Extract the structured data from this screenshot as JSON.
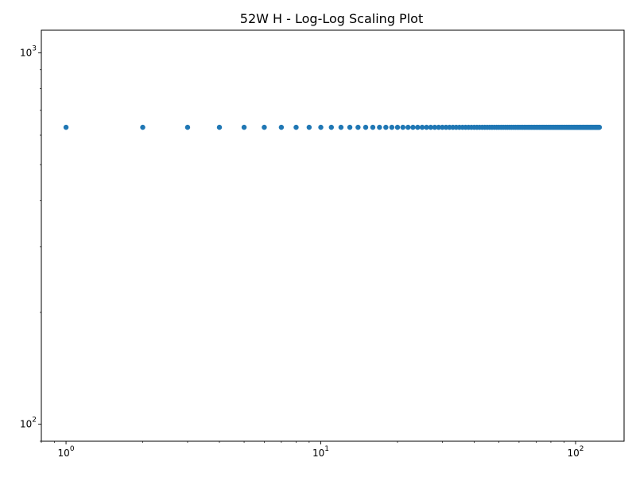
{
  "chart_data": {
    "type": "scatter",
    "title": "52W H  - Log-Log Scaling Plot",
    "xlabel": "",
    "ylabel": "",
    "xscale": "log",
    "yscale": "log",
    "xlim": [
      0.8,
      155
    ],
    "ylim": [
      90,
      1150
    ],
    "x_ticks": [
      {
        "value": 1,
        "base": "10",
        "exp": "0"
      },
      {
        "value": 10,
        "base": "10",
        "exp": "1"
      },
      {
        "value": 100,
        "base": "10",
        "exp": "2"
      }
    ],
    "y_ticks": [
      {
        "value": 100,
        "base": "10",
        "exp": "2"
      },
      {
        "value": 1000,
        "base": "10",
        "exp": "3"
      }
    ],
    "marker_color": "#1f77b4",
    "grid": false,
    "series": [
      {
        "x": [
          1,
          2,
          3,
          4,
          5,
          6,
          7,
          8,
          9,
          10,
          11,
          12,
          13,
          14,
          15,
          16,
          17,
          18,
          19,
          20,
          21,
          22,
          23,
          24,
          25,
          26,
          27,
          28,
          29,
          30,
          31,
          32,
          33,
          34,
          35,
          36,
          37,
          38,
          39,
          40,
          41,
          42,
          43,
          44,
          45,
          46,
          47,
          48,
          49,
          50,
          51,
          52,
          53,
          54,
          55,
          56,
          57,
          58,
          59,
          60,
          61,
          62,
          63,
          64,
          65,
          66,
          67,
          68,
          69,
          70,
          71,
          72,
          73,
          74,
          75,
          76,
          77,
          78,
          79,
          80,
          81,
          82,
          83,
          84,
          85,
          86,
          87,
          88,
          89,
          90,
          91,
          92,
          93,
          94,
          95,
          96,
          97,
          98,
          99,
          100,
          101,
          102,
          103,
          104,
          105,
          106,
          107,
          108,
          109,
          110,
          111,
          112,
          113,
          114,
          115,
          116,
          117,
          118,
          119,
          120,
          121,
          122,
          123,
          124
        ],
        "y_constant": 630
      }
    ]
  }
}
